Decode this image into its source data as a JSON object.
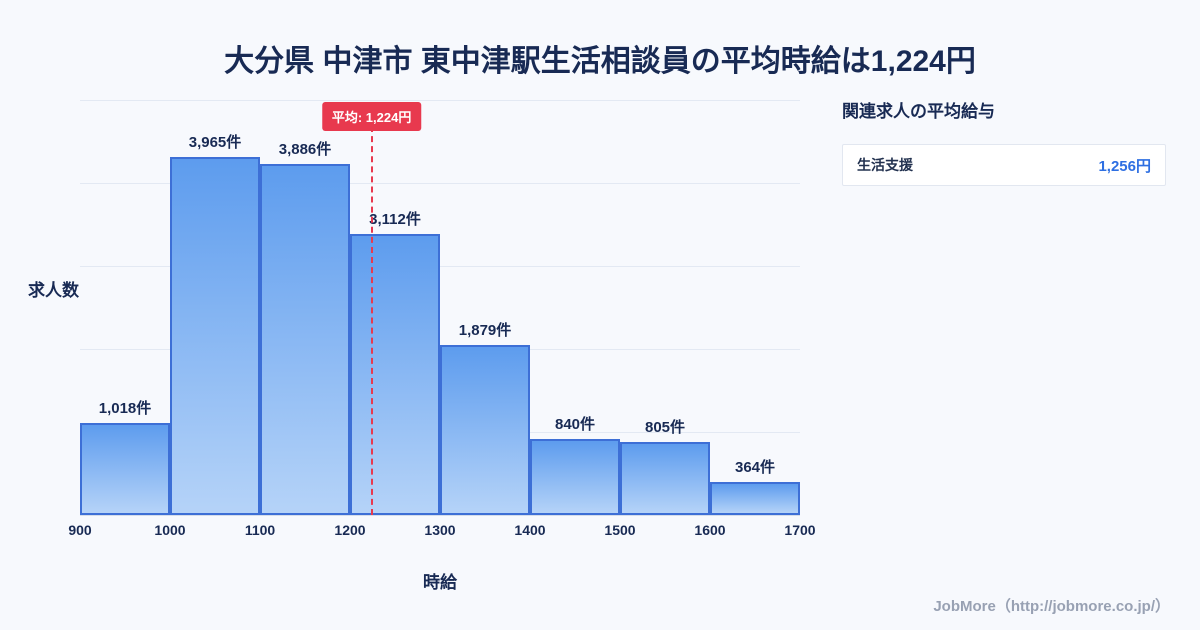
{
  "title": "大分県 中津市 東中津駅生活相談員の平均時給は1,224円",
  "chart_data": {
    "type": "bar",
    "title": "大分県 中津市 東中津駅生活相談員の平均時給は1,224円",
    "categories": [
      "900-1000",
      "1000-1100",
      "1100-1200",
      "1200-1300",
      "1300-1400",
      "1400-1500",
      "1500-1600",
      "1600-1700"
    ],
    "values": [
      1018,
      3965,
      3886,
      3112,
      1879,
      840,
      805,
      364
    ],
    "bar_labels": [
      "1,018件",
      "3,965件",
      "3,886件",
      "3,112件",
      "1,879件",
      "840件",
      "805件",
      "364件"
    ],
    "x_ticks": [
      "900",
      "1000",
      "1100",
      "1200",
      "1300",
      "1400",
      "1500",
      "1600",
      "1700"
    ],
    "x_range": [
      900,
      1700
    ],
    "xlabel": "時給",
    "ylabel": "求人数",
    "ylim": [
      0,
      4600
    ],
    "grid": true,
    "legend": "none",
    "average": 1224,
    "average_label": "平均: 1,224円"
  },
  "side_panel": {
    "heading": "関連求人の平均給与",
    "items": [
      {
        "label": "生活支援",
        "value": "1,256円"
      }
    ]
  },
  "footer": "JobMore（http://jobmore.co.jp/）",
  "colors": {
    "accent_red": "#e8394e",
    "bar_border": "#3d6fd6",
    "bar_top": "#5d9cee",
    "bar_bottom": "#b5d3f8",
    "title_color": "#182a54",
    "value_blue": "#2e6fe2"
  }
}
